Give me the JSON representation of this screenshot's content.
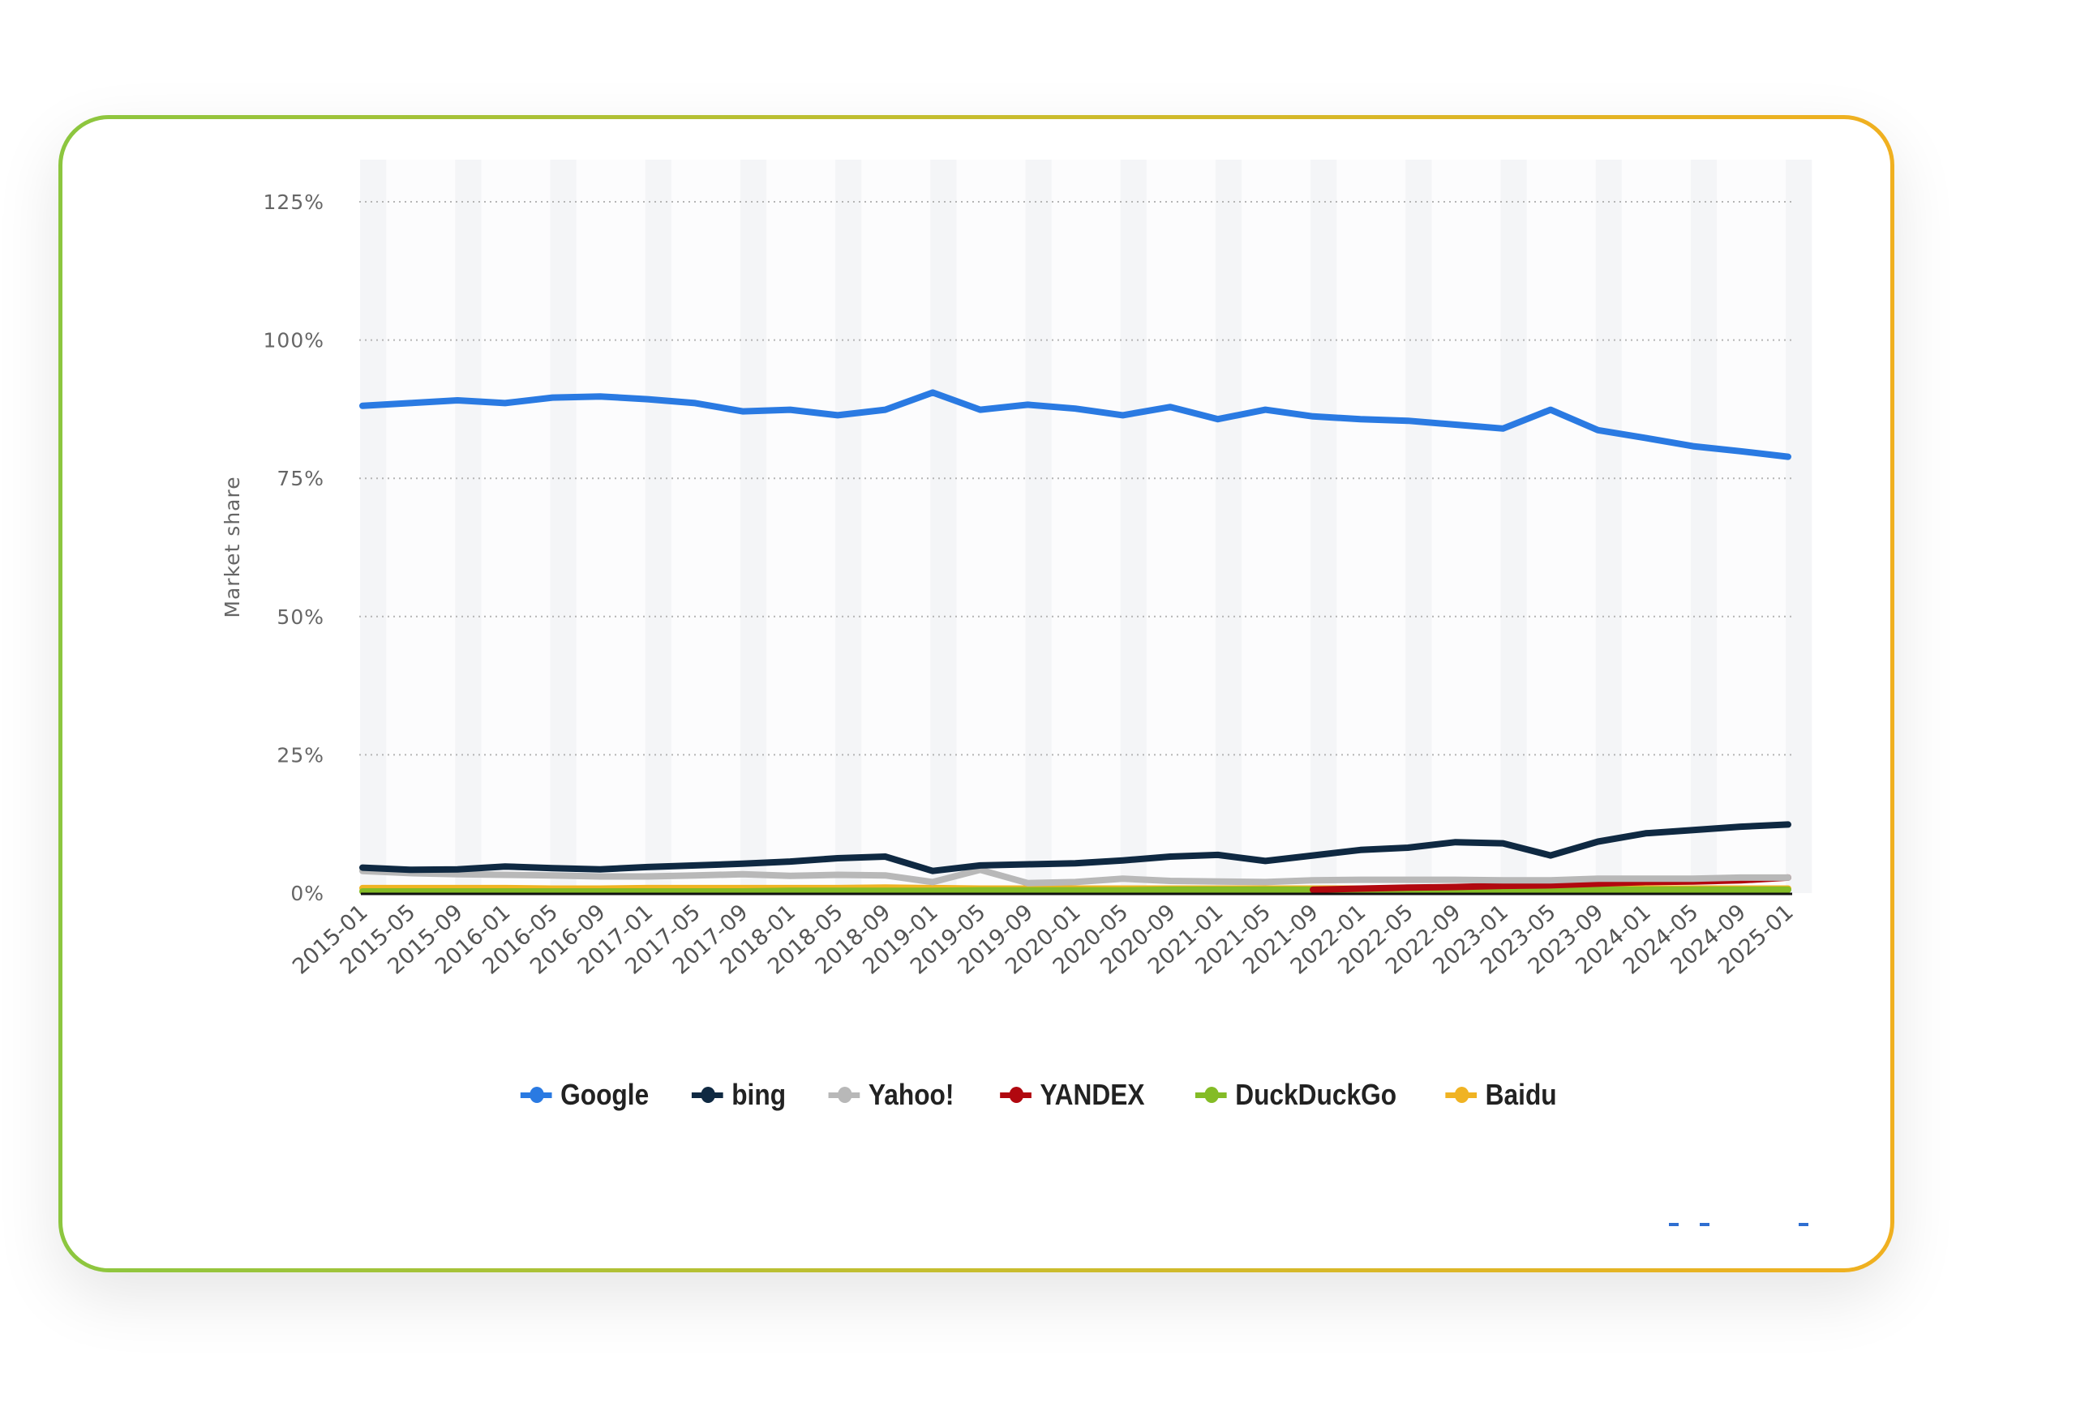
{
  "chart_data": {
    "type": "line",
    "ylabel": "Market share",
    "xlabel": "",
    "ylim": [
      0,
      125
    ],
    "yticks": [
      "0%",
      "25%",
      "50%",
      "75%",
      "100%",
      "125%"
    ],
    "ytick_values": [
      0,
      25,
      50,
      75,
      100,
      125
    ],
    "grid": true,
    "legend_position": "bottom",
    "categories": [
      "2015-01",
      "2015-05",
      "2015-09",
      "2016-01",
      "2016-05",
      "2016-09",
      "2017-01",
      "2017-05",
      "2017-09",
      "2018-01",
      "2018-05",
      "2018-09",
      "2019-01",
      "2019-05",
      "2019-09",
      "2020-01",
      "2020-05",
      "2020-09",
      "2021-01",
      "2021-05",
      "2021-09",
      "2022-01",
      "2022-05",
      "2022-09",
      "2023-01",
      "2023-05",
      "2023-09",
      "2024-01",
      "2024-05",
      "2024-09",
      "2025-01"
    ],
    "series": [
      {
        "name": "Baidu",
        "color": "#f0b323",
        "values": [
          0.9,
          0.9,
          0.9,
          0.9,
          0.8,
          0.8,
          0.9,
          0.9,
          0.9,
          0.9,
          0.9,
          1.0,
          0.9,
          0.8,
          0.8,
          0.8,
          0.8,
          0.8,
          0.8,
          0.8,
          0.8,
          0.8,
          0.8,
          0.8,
          0.8,
          0.8,
          0.8,
          0.8,
          0.8,
          0.8,
          0.8
        ]
      },
      {
        "name": "DuckDuckGo",
        "color": "#84bc26",
        "values": [
          0.3,
          0.3,
          0.3,
          0.3,
          0.3,
          0.3,
          0.3,
          0.3,
          0.3,
          0.4,
          0.4,
          0.4,
          0.4,
          0.5,
          0.5,
          0.5,
          0.5,
          0.6,
          0.6,
          0.6,
          0.6,
          0.6,
          0.6,
          0.6,
          0.6,
          0.6,
          0.6,
          0.6,
          0.6,
          0.6,
          0.6
        ]
      },
      {
        "name": "YANDEX",
        "color": "#b1080f",
        "values": [
          null,
          null,
          null,
          null,
          null,
          null,
          null,
          null,
          null,
          null,
          null,
          null,
          null,
          null,
          null,
          null,
          null,
          null,
          null,
          null,
          0.6,
          0.8,
          1.0,
          1.1,
          1.3,
          1.4,
          1.7,
          2.0,
          2.1,
          2.3,
          2.8
        ]
      },
      {
        "name": "Yahoo!",
        "color": "#b8b8b8",
        "values": [
          4.0,
          3.6,
          3.4,
          3.3,
          3.2,
          3.0,
          3.0,
          3.2,
          3.4,
          3.1,
          3.3,
          3.2,
          2.0,
          4.2,
          1.8,
          2.0,
          2.6,
          2.2,
          2.1,
          2.0,
          2.3,
          2.4,
          2.4,
          2.4,
          2.3,
          2.3,
          2.6,
          2.6,
          2.6,
          2.8,
          2.8
        ]
      },
      {
        "name": "bing",
        "color": "#0f2942",
        "values": [
          4.6,
          4.2,
          4.3,
          4.8,
          4.5,
          4.3,
          4.7,
          5.0,
          5.3,
          5.7,
          6.3,
          6.6,
          4.0,
          5.0,
          5.2,
          5.4,
          5.9,
          6.6,
          6.9,
          5.8,
          6.8,
          7.8,
          8.2,
          9.2,
          9.0,
          6.8,
          9.3,
          10.8,
          11.4,
          12.0,
          12.4
        ]
      },
      {
        "name": "Google",
        "color": "#2a7ae2",
        "values": [
          88.1,
          88.6,
          89.1,
          88.6,
          89.6,
          89.8,
          89.3,
          88.6,
          87.1,
          87.4,
          86.4,
          87.4,
          90.5,
          87.4,
          88.3,
          87.6,
          86.4,
          87.9,
          85.7,
          87.4,
          86.2,
          85.7,
          85.4,
          84.7,
          84.0,
          87.4,
          83.7,
          82.3,
          80.8,
          79.9,
          78.9
        ]
      }
    ]
  },
  "legend": [
    {
      "label": "Google",
      "color": "#2a7ae2"
    },
    {
      "label": "bing",
      "color": "#0f2942"
    },
    {
      "label": "Yahoo!",
      "color": "#b8b8b8"
    },
    {
      "label": "YANDEX",
      "color": "#b1080f"
    },
    {
      "label": "DuckDuckGo",
      "color": "#84bc26"
    },
    {
      "label": "Baidu",
      "color": "#f0b323"
    }
  ]
}
